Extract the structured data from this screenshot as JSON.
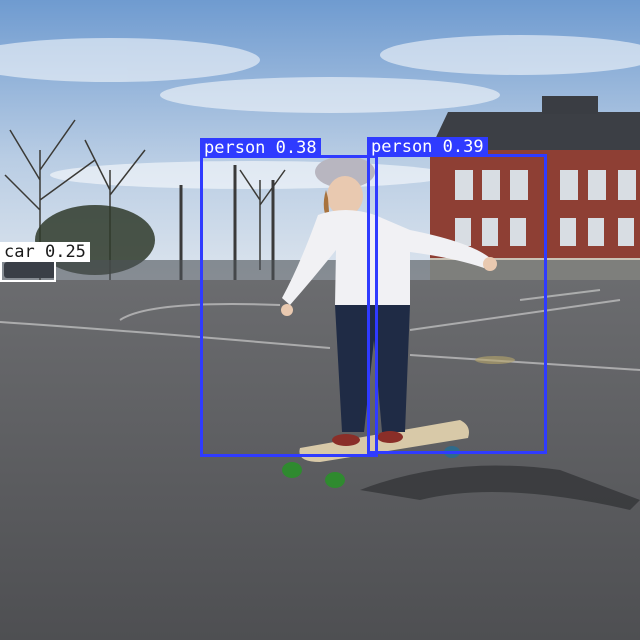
{
  "detections": [
    {
      "label": "person",
      "score": "0.38",
      "color": "#2f3bff"
    },
    {
      "label": "person",
      "score": "0.39",
      "color": "#2f3bff"
    },
    {
      "label": "car",
      "score": "0.25",
      "color": "#ffffff"
    }
  ]
}
